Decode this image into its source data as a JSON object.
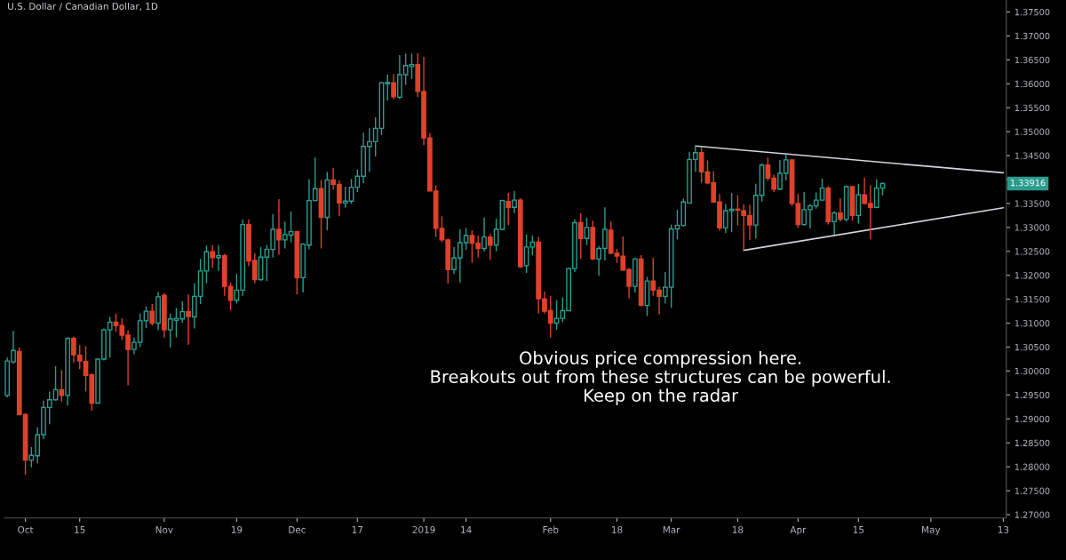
{
  "chart_data": {
    "type": "candlestick",
    "title": "U.S. Dollar / Canadian Dollar, 1D",
    "categories": [
      null,
      null,
      null,
      "Oct",
      null,
      null,
      null,
      null,
      null,
      null,
      null,
      null,
      "15",
      null,
      null,
      null,
      null,
      null,
      null,
      null,
      null,
      null,
      null,
      null,
      null,
      null,
      "Nov",
      null,
      null,
      null,
      null,
      null,
      null,
      null,
      null,
      null,
      null,
      null,
      "19",
      null,
      null,
      null,
      null,
      null,
      null,
      null,
      null,
      null,
      "Dec",
      null,
      null,
      null,
      null,
      null,
      null,
      null,
      null,
      null,
      "17",
      null,
      null,
      null,
      null,
      null,
      null,
      null,
      null,
      null,
      null,
      "2019",
      null,
      null,
      null,
      null,
      null,
      null,
      "14",
      null,
      null,
      null,
      null,
      null,
      null,
      null,
      null,
      null,
      null,
      null,
      null,
      null,
      "Feb",
      null,
      null,
      null,
      null,
      null,
      null,
      null,
      null,
      null,
      null,
      "18",
      null,
      null,
      null,
      null,
      null,
      null,
      null,
      null,
      "Mar",
      null,
      null,
      null,
      null,
      null,
      null,
      null,
      null,
      null,
      null,
      "18",
      null,
      null,
      null,
      null,
      null,
      null,
      null,
      null,
      null,
      "Apr",
      null,
      null,
      null,
      null,
      null,
      null,
      null,
      null,
      null,
      "15",
      null,
      null,
      null,
      null,
      null,
      null,
      null,
      null,
      null,
      null,
      null,
      "May",
      null,
      null,
      null,
      null,
      null,
      null,
      null,
      null,
      null,
      null,
      null,
      "13"
    ],
    "ohlc": [
      [
        1.2949,
        1.3028,
        1.2945,
        1.3021
      ],
      [
        1.3019,
        1.3084,
        1.3015,
        1.3043
      ],
      [
        1.3041,
        1.3049,
        1.2907,
        1.2909
      ],
      [
        1.2909,
        1.2912,
        1.2783,
        1.2814
      ],
      [
        1.2814,
        1.2841,
        1.2799,
        1.2824
      ],
      [
        1.2823,
        1.2883,
        1.2807,
        1.2867
      ],
      [
        1.2867,
        1.2938,
        1.2858,
        1.2924
      ],
      [
        1.2924,
        1.2957,
        1.2889,
        1.294
      ],
      [
        1.294,
        1.301,
        1.2938,
        1.2961
      ],
      [
        1.2961,
        1.3002,
        1.2936,
        1.2949
      ],
      [
        1.2949,
        1.3071,
        1.2928,
        1.3068
      ],
      [
        1.3068,
        1.3072,
        1.3017,
        1.3034
      ],
      [
        1.3033,
        1.3054,
        1.3004,
        1.3021
      ],
      [
        1.302,
        1.3052,
        1.2957,
        1.2991
      ],
      [
        1.2992,
        1.2995,
        1.2917,
        1.2933
      ],
      [
        1.2933,
        1.3025,
        1.2933,
        1.3025
      ],
      [
        1.3025,
        1.3089,
        1.3022,
        1.3086
      ],
      [
        1.3086,
        1.3113,
        1.3028,
        1.3102
      ],
      [
        1.3102,
        1.312,
        1.3082,
        1.3095
      ],
      [
        1.3095,
        1.311,
        1.3065,
        1.3075
      ],
      [
        1.3075,
        1.3085,
        1.297,
        1.3045
      ],
      [
        1.3045,
        1.307,
        1.3035,
        1.306
      ],
      [
        1.306,
        1.312,
        1.305,
        1.3105
      ],
      [
        1.3105,
        1.3135,
        1.309,
        1.3125
      ],
      [
        1.3125,
        1.314,
        1.3095,
        1.31
      ],
      [
        1.31,
        1.3165,
        1.3085,
        1.3155
      ],
      [
        1.3158,
        1.3163,
        1.307,
        1.3086
      ],
      [
        1.3086,
        1.312,
        1.3049,
        1.3109
      ],
      [
        1.3106,
        1.3132,
        1.307,
        1.311
      ],
      [
        1.3109,
        1.3146,
        1.3101,
        1.3124
      ],
      [
        1.3124,
        1.316,
        1.3055,
        1.3114
      ],
      [
        1.3113,
        1.3183,
        1.3089,
        1.3156
      ],
      [
        1.3156,
        1.3234,
        1.314,
        1.3209
      ],
      [
        1.3209,
        1.3262,
        1.3183,
        1.3249
      ],
      [
        1.3249,
        1.3263,
        1.3215,
        1.3237
      ],
      [
        1.3237,
        1.3263,
        1.3209,
        1.3241
      ],
      [
        1.3241,
        1.3245,
        1.3157,
        1.3177
      ],
      [
        1.3177,
        1.3185,
        1.3127,
        1.3148
      ],
      [
        1.3148,
        1.3203,
        1.3141,
        1.3169
      ],
      [
        1.3169,
        1.3317,
        1.3157,
        1.3306
      ],
      [
        1.3306,
        1.3317,
        1.3219,
        1.323
      ],
      [
        1.3231,
        1.3246,
        1.3183,
        1.3191
      ],
      [
        1.3191,
        1.3259,
        1.3188,
        1.3238
      ],
      [
        1.3238,
        1.3263,
        1.3188,
        1.3254
      ],
      [
        1.3254,
        1.3328,
        1.3237,
        1.3296
      ],
      [
        1.3296,
        1.3359,
        1.3243,
        1.3274
      ],
      [
        1.3274,
        1.3312,
        1.3256,
        1.3285
      ],
      [
        1.3284,
        1.3333,
        1.3269,
        1.3291
      ],
      [
        1.3291,
        1.3293,
        1.316,
        1.3195
      ],
      [
        1.3195,
        1.3267,
        1.3164,
        1.3265
      ],
      [
        1.3263,
        1.3401,
        1.3254,
        1.3356
      ],
      [
        1.3356,
        1.3446,
        1.3355,
        1.3381
      ],
      [
        1.3381,
        1.3399,
        1.3256,
        1.3321
      ],
      [
        1.3321,
        1.3416,
        1.3294,
        1.3399
      ],
      [
        1.3399,
        1.3424,
        1.3379,
        1.339
      ],
      [
        1.339,
        1.3398,
        1.3324,
        1.3351
      ],
      [
        1.3351,
        1.3385,
        1.3341,
        1.3355
      ],
      [
        1.3355,
        1.3401,
        1.3349,
        1.3384
      ],
      [
        1.3384,
        1.3421,
        1.3374,
        1.3407
      ],
      [
        1.3407,
        1.3498,
        1.3392,
        1.3469
      ],
      [
        1.3469,
        1.3507,
        1.3416,
        1.3479
      ],
      [
        1.3479,
        1.353,
        1.3448,
        1.3507
      ],
      [
        1.3507,
        1.3604,
        1.3493,
        1.3602
      ],
      [
        1.36,
        1.3619,
        1.3565,
        1.3603
      ],
      [
        1.3602,
        1.362,
        1.3568,
        1.3573
      ],
      [
        1.3572,
        1.366,
        1.3568,
        1.3619
      ],
      [
        1.3619,
        1.3663,
        1.3598,
        1.3638
      ],
      [
        1.3636,
        1.3663,
        1.361,
        1.364
      ],
      [
        1.364,
        1.3664,
        1.3572,
        1.3584
      ],
      [
        1.3584,
        1.3656,
        1.3472,
        1.3487
      ],
      [
        1.3487,
        1.3497,
        1.3376,
        1.3376
      ],
      [
        1.3376,
        1.3388,
        1.328,
        1.3298
      ],
      [
        1.3298,
        1.3323,
        1.3269,
        1.3274
      ],
      [
        1.3274,
        1.3277,
        1.3183,
        1.3212
      ],
      [
        1.3212,
        1.3259,
        1.3203,
        1.3236
      ],
      [
        1.3236,
        1.3296,
        1.3185,
        1.3268
      ],
      [
        1.3268,
        1.3299,
        1.3253,
        1.3283
      ],
      [
        1.3283,
        1.3294,
        1.3226,
        1.3267
      ],
      [
        1.3267,
        1.3283,
        1.3237,
        1.3256
      ],
      [
        1.3256,
        1.332,
        1.3249,
        1.328
      ],
      [
        1.328,
        1.3286,
        1.3232,
        1.3263
      ],
      [
        1.3263,
        1.3318,
        1.325,
        1.3296
      ],
      [
        1.3296,
        1.3358,
        1.3294,
        1.3356
      ],
      [
        1.3354,
        1.3372,
        1.3305,
        1.3342
      ],
      [
        1.3342,
        1.3376,
        1.333,
        1.3357
      ],
      [
        1.3357,
        1.3361,
        1.3215,
        1.3218
      ],
      [
        1.322,
        1.3285,
        1.3205,
        1.3259
      ],
      [
        1.3259,
        1.3283,
        1.3242,
        1.3269
      ],
      [
        1.3269,
        1.328,
        1.312,
        1.3151
      ],
      [
        1.3151,
        1.3166,
        1.312,
        1.3125
      ],
      [
        1.3126,
        1.3157,
        1.307,
        1.31
      ],
      [
        1.31,
        1.3148,
        1.3086,
        1.311
      ],
      [
        1.311,
        1.3154,
        1.3102,
        1.3126
      ],
      [
        1.3126,
        1.3216,
        1.3125,
        1.3214
      ],
      [
        1.3214,
        1.3317,
        1.3207,
        1.331
      ],
      [
        1.331,
        1.333,
        1.3234,
        1.3277
      ],
      [
        1.3277,
        1.332,
        1.3263,
        1.33
      ],
      [
        1.33,
        1.3314,
        1.3232,
        1.3234
      ],
      [
        1.3234,
        1.3261,
        1.3199,
        1.3256
      ],
      [
        1.3256,
        1.3342,
        1.3231,
        1.3296
      ],
      [
        1.3294,
        1.3312,
        1.3244,
        1.3246
      ],
      [
        1.3246,
        1.3255,
        1.3226,
        1.324
      ],
      [
        1.324,
        1.3281,
        1.321,
        1.3211
      ],
      [
        1.3212,
        1.3215,
        1.3152,
        1.3177
      ],
      [
        1.3177,
        1.3236,
        1.3164,
        1.3234
      ],
      [
        1.3234,
        1.3242,
        1.3135,
        1.3137
      ],
      [
        1.3137,
        1.3197,
        1.3115,
        1.3188
      ],
      [
        1.3188,
        1.3236,
        1.3157,
        1.3169
      ],
      [
        1.3169,
        1.3176,
        1.3118,
        1.3156
      ],
      [
        1.3156,
        1.3207,
        1.3141,
        1.3175
      ],
      [
        1.3175,
        1.3306,
        1.3132,
        1.3297
      ],
      [
        1.3297,
        1.3337,
        1.3275,
        1.3304
      ],
      [
        1.3304,
        1.336,
        1.3302,
        1.3353
      ],
      [
        1.3351,
        1.3458,
        1.3351,
        1.3442
      ],
      [
        1.3442,
        1.347,
        1.3416,
        1.3456
      ],
      [
        1.3456,
        1.3468,
        1.3393,
        1.3416
      ],
      [
        1.3416,
        1.344,
        1.339,
        1.3393
      ],
      [
        1.3393,
        1.3417,
        1.3351,
        1.3353
      ],
      [
        1.3353,
        1.337,
        1.3293,
        1.3299
      ],
      [
        1.3299,
        1.3349,
        1.3288,
        1.3335
      ],
      [
        1.3335,
        1.3372,
        1.329,
        1.3338
      ],
      [
        1.3338,
        1.3367,
        1.3304,
        1.3336
      ],
      [
        1.3335,
        1.3348,
        1.3252,
        1.3325
      ],
      [
        1.3325,
        1.3347,
        1.3274,
        1.3305
      ],
      [
        1.3305,
        1.3391,
        1.3277,
        1.3367
      ],
      [
        1.3367,
        1.3434,
        1.3354,
        1.343
      ],
      [
        1.343,
        1.3446,
        1.3397,
        1.3403
      ],
      [
        1.3403,
        1.341,
        1.3374,
        1.338
      ],
      [
        1.338,
        1.3441,
        1.3378,
        1.3413
      ],
      [
        1.3413,
        1.3453,
        1.3398,
        1.3441
      ],
      [
        1.3441,
        1.3442,
        1.3345,
        1.335
      ],
      [
        1.335,
        1.337,
        1.3299,
        1.3306
      ],
      [
        1.3306,
        1.3374,
        1.3304,
        1.3337
      ],
      [
        1.3337,
        1.3349,
        1.3298,
        1.3345
      ],
      [
        1.3345,
        1.3373,
        1.3339,
        1.3357
      ],
      [
        1.3357,
        1.3402,
        1.3355,
        1.3382
      ],
      [
        1.3382,
        1.3386,
        1.3306,
        1.3312
      ],
      [
        1.3312,
        1.3334,
        1.3285,
        1.333
      ],
      [
        1.333,
        1.3361,
        1.3312,
        1.3317
      ],
      [
        1.3317,
        1.3388,
        1.3312,
        1.3385
      ],
      [
        1.3385,
        1.3386,
        1.3314,
        1.3325
      ],
      [
        1.3325,
        1.3391,
        1.3308,
        1.3368
      ],
      [
        1.3368,
        1.3404,
        1.3348,
        1.335
      ],
      [
        1.335,
        1.3388,
        1.3275,
        1.3342
      ],
      [
        1.3342,
        1.3401,
        1.334,
        1.3382
      ],
      [
        1.3382,
        1.3394,
        1.3367,
        1.33916
      ],
      null,
      null,
      null,
      null,
      null,
      null,
      null,
      null,
      null,
      null,
      null,
      null,
      null,
      null,
      null,
      null,
      null,
      null,
      null,
      null
    ],
    "series": [
      {
        "type": "line",
        "color": "#d1d4dc",
        "values": [
          null,
          null,
          null,
          null,
          null,
          null,
          null,
          null,
          null,
          null,
          null,
          null,
          null,
          null,
          null,
          null,
          null,
          null,
          null,
          null,
          null,
          null,
          null,
          null,
          null,
          null,
          null,
          null,
          null,
          null,
          null,
          null,
          null,
          null,
          null,
          null,
          null,
          null,
          null,
          null,
          null,
          null,
          null,
          null,
          null,
          null,
          null,
          null,
          null,
          null,
          null,
          null,
          null,
          null,
          null,
          null,
          null,
          null,
          null,
          null,
          null,
          null,
          null,
          null,
          null,
          null,
          null,
          null,
          null,
          null,
          null,
          null,
          null,
          null,
          null,
          null,
          null,
          null,
          null,
          null,
          null,
          null,
          null,
          null,
          null,
          null,
          null,
          null,
          null,
          null,
          null,
          null,
          null,
          null,
          null,
          null,
          null,
          null,
          null,
          null,
          null,
          null,
          null,
          null,
          null,
          null,
          null,
          null,
          null,
          null,
          null,
          null,
          null,
          null,
          1.347,
          null,
          null,
          null,
          null,
          null,
          null,
          null,
          null,
          null,
          null,
          null,
          null,
          null,
          null,
          null,
          null,
          null,
          null,
          null,
          null,
          null,
          null,
          null,
          null,
          null,
          null,
          null,
          null,
          null,
          null,
          null,
          null,
          null,
          null,
          null,
          null,
          null,
          null,
          null,
          null,
          null,
          null,
          null,
          null,
          null,
          null,
          null,
          null,
          null,
          null,
          1.3414
        ]
      },
      {
        "type": "line",
        "color": "#d1d4dc",
        "values": [
          null,
          null,
          null,
          null,
          null,
          null,
          null,
          null,
          null,
          null,
          null,
          null,
          null,
          null,
          null,
          null,
          null,
          null,
          null,
          null,
          null,
          null,
          null,
          null,
          null,
          null,
          null,
          null,
          null,
          null,
          null,
          null,
          null,
          null,
          null,
          null,
          null,
          null,
          null,
          null,
          null,
          null,
          null,
          null,
          null,
          null,
          null,
          null,
          null,
          null,
          null,
          null,
          null,
          null,
          null,
          null,
          null,
          null,
          null,
          null,
          null,
          null,
          null,
          null,
          null,
          null,
          null,
          null,
          null,
          null,
          null,
          null,
          null,
          null,
          null,
          null,
          null,
          null,
          null,
          null,
          null,
          null,
          null,
          null,
          null,
          null,
          null,
          null,
          null,
          null,
          null,
          null,
          null,
          null,
          null,
          null,
          null,
          null,
          null,
          null,
          null,
          null,
          null,
          null,
          null,
          null,
          null,
          null,
          null,
          null,
          null,
          null,
          null,
          null,
          null,
          null,
          null,
          null,
          null,
          null,
          null,
          null,
          1.3252,
          null,
          null,
          null,
          null,
          null,
          null,
          null,
          null,
          null,
          null,
          null,
          null,
          null,
          null,
          null,
          null,
          null,
          null,
          null,
          null,
          null,
          null,
          null,
          null,
          null,
          null,
          null,
          null,
          null,
          null,
          null,
          null,
          null,
          null,
          null,
          null,
          null,
          null,
          null,
          null,
          null,
          null,
          1.3341
        ]
      }
    ],
    "ylim": [
      1.2693,
      1.3775
    ],
    "yticks": [
      {
        "value": 1.27,
        "label": "1.27000"
      },
      {
        "value": 1.275,
        "label": "1.27500"
      },
      {
        "value": 1.28,
        "label": "1.28000"
      },
      {
        "value": 1.285,
        "label": "1.28500"
      },
      {
        "value": 1.29,
        "label": "1.29000"
      },
      {
        "value": 1.295,
        "label": "1.29500"
      },
      {
        "value": 1.3,
        "label": "1.30000"
      },
      {
        "value": 1.305,
        "label": "1.30500"
      },
      {
        "value": 1.31,
        "label": "1.31000"
      },
      {
        "value": 1.315,
        "label": "1.31500"
      },
      {
        "value": 1.32,
        "label": "1.32000"
      },
      {
        "value": 1.325,
        "label": "1.32500"
      },
      {
        "value": 1.33,
        "label": "1.33000"
      },
      {
        "value": 1.335,
        "label": "1.33500"
      },
      {
        "value": 1.34,
        "label": null
      },
      {
        "value": 1.345,
        "label": "1.34500"
      },
      {
        "value": 1.35,
        "label": "1.35000"
      },
      {
        "value": 1.355,
        "label": "1.35500"
      },
      {
        "value": 1.36,
        "label": "1.36000"
      },
      {
        "value": 1.365,
        "label": "1.36500"
      },
      {
        "value": 1.37,
        "label": "1.37000"
      },
      {
        "value": 1.375,
        "label": "1.37500"
      }
    ],
    "grid": false,
    "annotations": [
      "1.33916",
      "Obvious price compression here.\nBreakouts out from these structures can be powerful.\nKeep on the radar"
    ]
  }
}
